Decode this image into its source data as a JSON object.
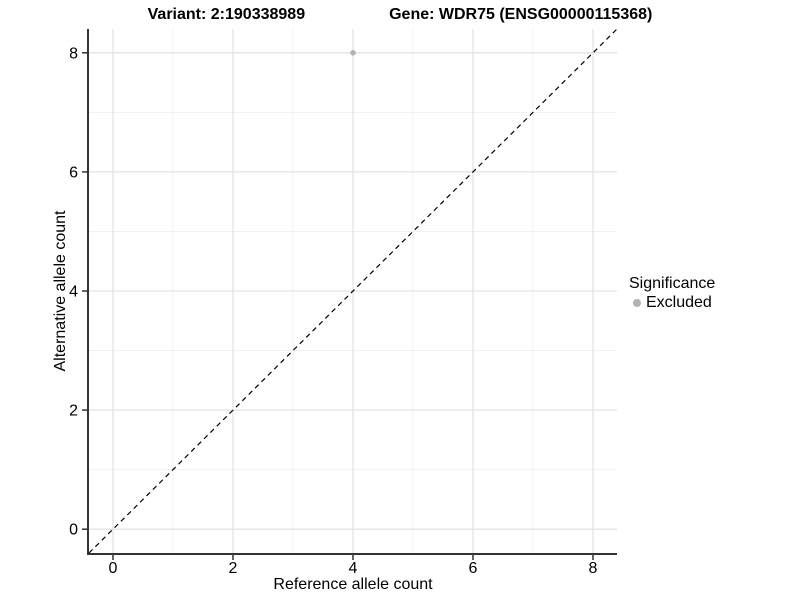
{
  "title": {
    "variant_label": "Variant: 2:190338989",
    "gene_label": "Gene: WDR75 (ENSG00000115368)"
  },
  "chart_data": {
    "type": "scatter",
    "title_left": "Variant: 2:190338989",
    "title_right": "Gene: WDR75 (ENSG00000115368)",
    "xlabel": "Reference allele count",
    "ylabel": "Alternative allele count",
    "xlim": [
      -0.4,
      8.4
    ],
    "ylim": [
      -0.4,
      8.4
    ],
    "x_major_ticks": [
      0,
      2,
      4,
      6,
      8
    ],
    "y_major_ticks": [
      0,
      2,
      4,
      6,
      8
    ],
    "x_minor_ticks": [
      1,
      3,
      5,
      7
    ],
    "y_minor_ticks": [
      1,
      3,
      5,
      7
    ],
    "grid": "major+minor on white, no panel border, black left/bottom axis lines",
    "legend_position": "right",
    "series": [
      {
        "name": "Excluded",
        "points": [
          {
            "x": 4,
            "y": 8
          }
        ]
      }
    ],
    "reference_line": {
      "type": "identity y=x",
      "style": "dashed",
      "from": [
        -0.4,
        -0.4
      ],
      "to": [
        8.4,
        8.4
      ]
    },
    "legend": {
      "title": "Significance",
      "items": [
        {
          "label": "Excluded",
          "marker": "circle",
          "color": "#b3b3b3"
        }
      ]
    },
    "colors": {
      "point_excluded": "#b3b3b3",
      "grid_major": "#e3e3e3",
      "grid_minor": "#f1f1f1",
      "axis_line": "#333333",
      "tick_mark": "#333333",
      "text": "#000000",
      "dashed_line": "#000000",
      "background": "#ffffff"
    }
  }
}
